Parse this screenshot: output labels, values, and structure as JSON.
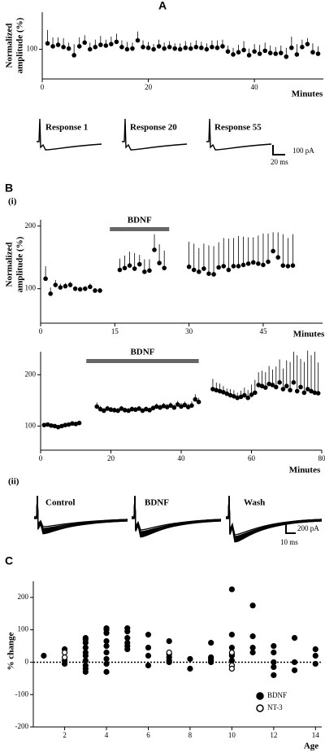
{
  "panel_labels": [
    "A",
    "B",
    "(i)",
    "(ii)",
    "C"
  ],
  "traces_a": {
    "labels": [
      "Response 1",
      "Response 20",
      "Response 55"
    ],
    "scale_y": "100 pA",
    "scale_x": "20 ms"
  },
  "traces_b": {
    "labels": [
      "Control",
      "BDNF",
      "Wash"
    ],
    "scale_y": "200 pA",
    "scale_x": "10 ms"
  },
  "chart_data": [
    {
      "type": "scatter",
      "xlabel": "Minutes",
      "ylabel": [
        "Normalized",
        "amplitude (%)"
      ],
      "xlim": [
        0,
        53
      ],
      "ylim": [
        60,
        150
      ],
      "xticks": [
        0,
        20,
        40
      ],
      "yticks": [
        100
      ],
      "color": "#000000",
      "x": [
        1,
        2,
        3,
        4,
        5,
        6,
        7,
        8,
        9,
        10,
        11,
        12,
        13,
        14,
        15,
        16,
        17,
        18,
        19,
        20,
        21,
        22,
        23,
        24,
        25,
        26,
        27,
        28,
        29,
        30,
        31,
        32,
        33,
        34,
        35,
        36,
        37,
        38,
        39,
        40,
        41,
        42,
        43,
        44,
        45,
        46,
        47,
        48,
        49,
        50,
        51,
        52
      ],
      "values": [
        108,
        104,
        106,
        103,
        101,
        92,
        104,
        109,
        100,
        103,
        106,
        105,
        107,
        110,
        103,
        100,
        101,
        112,
        103,
        102,
        100,
        104,
        101,
        103,
        101,
        100,
        102,
        101,
        103,
        102,
        100,
        103,
        102,
        104,
        97,
        93,
        96,
        99,
        92,
        97,
        94,
        98,
        95,
        94,
        95,
        90,
        102,
        93,
        103,
        107,
        96,
        94
      ],
      "errors": [
        18,
        12,
        10,
        12,
        8,
        15,
        12,
        10,
        9,
        10,
        12,
        8,
        10,
        11,
        9,
        10,
        8,
        12,
        9,
        8,
        7,
        9,
        8,
        8,
        7,
        8,
        9,
        8,
        9,
        8,
        8,
        9,
        10,
        9,
        8,
        9,
        10,
        12,
        9,
        10,
        12,
        11,
        10,
        9,
        10,
        12,
        15,
        14,
        10,
        8,
        12,
        10
      ]
    },
    {
      "type": "scatter",
      "xlabel": "Minutes",
      "ylabel": [
        "Normalized",
        "amplitude (%)"
      ],
      "xlim": [
        0,
        57
      ],
      "ylim": [
        45,
        210
      ],
      "xticks": [
        0,
        15,
        30,
        45
      ],
      "yticks": [
        100,
        200
      ],
      "color": "#000000",
      "bar": {
        "label": "BDNF",
        "x0": 14,
        "x1": 26,
        "color": "#666666"
      },
      "x": [
        1,
        2,
        3,
        4,
        5,
        6,
        7,
        8,
        9,
        10,
        11,
        12,
        16,
        17,
        18,
        19,
        20,
        21,
        22,
        23,
        24,
        25,
        30,
        31,
        32,
        33,
        34,
        35,
        36,
        37,
        38,
        39,
        40,
        41,
        42,
        43,
        44,
        45,
        46,
        47,
        48,
        49,
        50,
        51
      ],
      "values": [
        116,
        92,
        106,
        102,
        104,
        106,
        100,
        99,
        100,
        103,
        97,
        97,
        130,
        133,
        137,
        132,
        139,
        127,
        129,
        162,
        141,
        133,
        135,
        130,
        127,
        132,
        124,
        123,
        134,
        136,
        130,
        136,
        136,
        138,
        140,
        142,
        140,
        138,
        143,
        160,
        150,
        137,
        136,
        137
      ],
      "errors": [
        20,
        10,
        8,
        6,
        5,
        5,
        4,
        4,
        4,
        5,
        4,
        4,
        18,
        20,
        22,
        25,
        15,
        20,
        18,
        25,
        30,
        28,
        40,
        42,
        38,
        40,
        45,
        45,
        40,
        45,
        50,
        45,
        48,
        45,
        42,
        40,
        45,
        50,
        45,
        30,
        40,
        50,
        45,
        50
      ]
    },
    {
      "type": "scatter",
      "xlabel": "Minutes",
      "xlim": [
        0,
        80
      ],
      "ylim": [
        53,
        245
      ],
      "xticks": [
        0,
        20,
        40,
        60,
        80
      ],
      "yticks": [
        100,
        200
      ],
      "color": "#000000",
      "bar": {
        "label": "BDNF",
        "x0": 13,
        "x1": 45,
        "color": "#666666"
      },
      "x": [
        1,
        2,
        3,
        4,
        5,
        6,
        7,
        8,
        9,
        10,
        11,
        16,
        17,
        18,
        19,
        20,
        21,
        22,
        23,
        24,
        25,
        26,
        27,
        28,
        29,
        30,
        31,
        32,
        33,
        34,
        35,
        36,
        37,
        38,
        39,
        40,
        41,
        42,
        43,
        44,
        45,
        49,
        50,
        51,
        52,
        53,
        54,
        55,
        56,
        57,
        58,
        59,
        60,
        61,
        62,
        63,
        64,
        65,
        66,
        67,
        68,
        69,
        70,
        71,
        72,
        73,
        74,
        75,
        76,
        77,
        78,
        79
      ],
      "values": [
        102,
        103,
        101,
        100,
        98,
        100,
        102,
        103,
        105,
        104,
        106,
        138,
        133,
        130,
        134,
        132,
        131,
        130,
        134,
        131,
        130,
        133,
        132,
        134,
        130,
        133,
        131,
        135,
        138,
        136,
        139,
        137,
        140,
        136,
        142,
        138,
        141,
        137,
        140,
        152,
        147,
        172,
        170,
        168,
        166,
        163,
        160,
        158,
        155,
        157,
        160,
        155,
        161,
        165,
        180,
        178,
        175,
        182,
        180,
        176,
        185,
        172,
        178,
        170,
        185,
        168,
        176,
        165,
        172,
        168,
        165,
        164
      ],
      "errors": [
        4,
        3,
        3,
        3,
        3,
        3,
        3,
        3,
        3,
        4,
        4,
        8,
        6,
        5,
        5,
        5,
        5,
        5,
        5,
        5,
        5,
        5,
        5,
        5,
        5,
        5,
        5,
        5,
        6,
        6,
        6,
        6,
        6,
        6,
        7,
        7,
        7,
        7,
        8,
        10,
        8,
        20,
        15,
        15,
        12,
        10,
        12,
        12,
        10,
        12,
        15,
        15,
        20,
        25,
        25,
        30,
        30,
        35,
        30,
        40,
        45,
        40,
        50,
        55,
        60,
        70,
        55,
        60,
        75,
        70,
        80,
        60
      ]
    },
    {
      "type": "scatter",
      "xlabel": "Age",
      "ylabel": [
        "% change"
      ],
      "xlim": [
        0.5,
        14.3
      ],
      "ylim": [
        -200,
        250
      ],
      "xticks": [
        2,
        4,
        6,
        8,
        10,
        12,
        14
      ],
      "yticks": [
        -200,
        -100,
        0,
        100,
        200
      ],
      "reference_line": 0,
      "legend": "lower right",
      "series": [
        {
          "name": "BDNF",
          "color": "#000000",
          "marker": "filled",
          "x": [
            1,
            2,
            2,
            2,
            3,
            3,
            3,
            3,
            3,
            3,
            3,
            3,
            3,
            3,
            4,
            4,
            4,
            4,
            4,
            4,
            4,
            4,
            4,
            5,
            5,
            5,
            5,
            5,
            5,
            6,
            6,
            6,
            6,
            7,
            7,
            7,
            7,
            7,
            8,
            8,
            9,
            9,
            9,
            9,
            9,
            10,
            10,
            10,
            10,
            10,
            10,
            10,
            11,
            11,
            11,
            11,
            12,
            12,
            12,
            12,
            12,
            13,
            13,
            13,
            14,
            14,
            14
          ],
          "values": [
            20,
            5,
            40,
            -5,
            75,
            60,
            45,
            30,
            20,
            5,
            -10,
            -20,
            -30,
            70,
            105,
            90,
            65,
            50,
            30,
            10,
            -5,
            -30,
            100,
            105,
            95,
            75,
            60,
            50,
            40,
            85,
            45,
            20,
            -10,
            65,
            25,
            15,
            5,
            0,
            10,
            -20,
            60,
            15,
            10,
            5,
            0,
            225,
            85,
            45,
            25,
            20,
            5,
            -10,
            175,
            80,
            45,
            30,
            50,
            30,
            0,
            -15,
            -40,
            75,
            -25,
            0,
            40,
            20,
            -5
          ]
        },
        {
          "name": "NT-3",
          "color": "#000000",
          "marker": "open",
          "x": [
            2,
            2,
            7,
            10,
            10,
            10
          ],
          "values": [
            30,
            15,
            30,
            30,
            -10,
            -20
          ]
        }
      ]
    }
  ]
}
